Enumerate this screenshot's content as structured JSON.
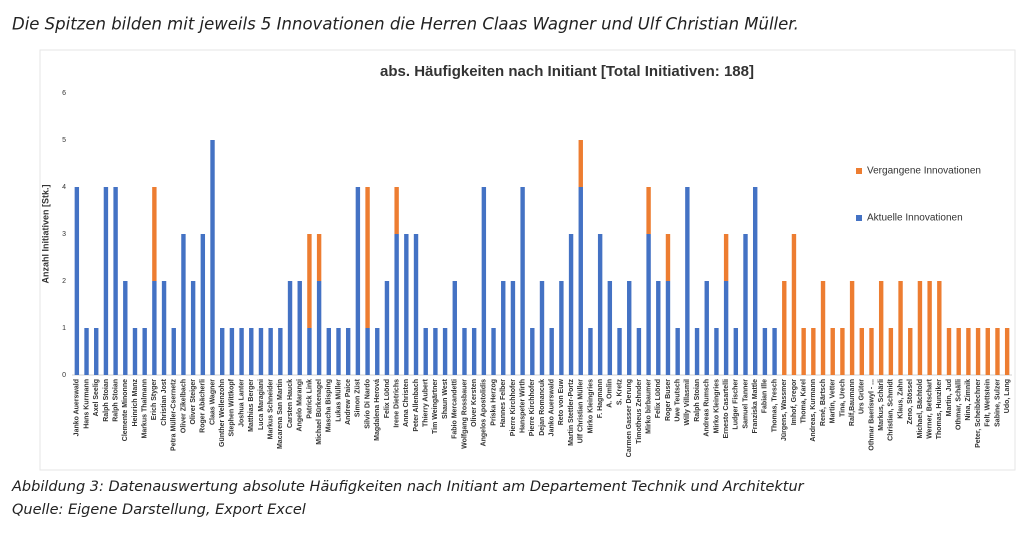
{
  "heading": "Die Spitzen bilden mit jeweils 5 Innovationen die Herren Claas Wagner und Ulf Christian Müller.",
  "caption": [
    "Abbildung 3: Datenauswertung absolute Häufigkeiten nach Initiant am Departement Technik und Architektur",
    "Quelle: Eigene Darstellung, Export Excel"
  ],
  "chart_data": {
    "type": "stacked_bar",
    "title": "abs. Häufigkeiten nach Initiant [Total Initiativen: 188]",
    "y_label": "Anzahl Initiativen [Stk.]",
    "categories": [
      "Janko Auerswald",
      "Hans Kurmann",
      "Axel Seelig",
      "Ralph Stoian",
      "Ralph Stoian",
      "Clemente Minonne",
      "Heinrich Manz",
      "Markus Thalmann",
      "Erich Styger",
      "Christian Jost",
      "Petra Müller-Csernetz",
      "Oliver Zikelbach",
      "Oliver Steiger",
      "Roger Abächerli",
      "Claas Wagner",
      "Günther Wellenzohn",
      "Stephen Wittkopf",
      "Joshua Lanter",
      "Matthias Berger",
      "Luca Maragiani",
      "Markus Schneider",
      "Macarena San Martin",
      "Carsten Hauck",
      "Angelo Marangi",
      "Patrick Link",
      "Michael Bürkenagel",
      "Mascha Bisping",
      "Lukas Müller",
      "Andrew Paice",
      "Simon Züst",
      "Silvio Di Nardo",
      "Magdalena Herová",
      "Felix Lüönd",
      "Irene Dietrichs",
      "Anna Christen",
      "Peter Allenbach",
      "Thierry Aubert",
      "Tim Weingärtner",
      "Shaun West",
      "Fabio Mercandetti",
      "Wolfgang Rossbauer",
      "Oliver Kersten",
      "Angelos Apostolidis",
      "Priska Herzog",
      "Hannes Felber",
      "Pierre Kirchhofer",
      "Hanspeter Wirth",
      "Pierre Kirchhofer",
      "Dejan Romancuk",
      "Janko Auerswald",
      "Reto von Euw",
      "Martin Stettler-Portz",
      "Ulf Christian Müller",
      "Mirko Kleingries",
      "F. Hagmann",
      "A. Omlin",
      "S. Kretz",
      "Carmen Gasser Derung",
      "Timotheus Zehnder",
      "Mirko birbaumer",
      "Felix Lüönd",
      "Roger Buser",
      "Uwe Teutsch",
      "Willy Villasmil",
      "Ralph Stoian",
      "Andreas Rumsch",
      "Mirko Kleingries",
      "Ernesto Casartelli",
      "Ludger Fischer",
      "Samuel Tanner",
      "Franziska Mattle",
      "Fabian Ille",
      "Thomas, Tresch",
      "Jürgens, Wassmer",
      "Imhof, Gregor",
      "Thoma, Karel",
      "Andreas, Kurmann",
      "René, Bärtsch",
      "Martin, Vetter",
      "Tina, Urech",
      "Ralf,Baumann",
      "Urs Grüter",
      "Othmar Baeriswyl - ...",
      "Markus, Schärli",
      "Christian, Schmidt",
      "Klaus, Zahn",
      "Zeno, Stössel",
      "Michael, Bächtold",
      "Werner, Betschart",
      "Thomas, Hunziker",
      "Martin, Jud",
      "Othmar, Schälli",
      "Nina, Zimnik",
      "Peter, Scheiblechner",
      "Felt, Wettstein",
      "Sabine, Sulzer",
      "Udo, Lang"
    ],
    "series": [
      {
        "name": "Aktuelle Innovationen",
        "color": "#4472c4",
        "values": [
          4,
          1,
          1,
          4,
          4,
          2,
          1,
          1,
          2,
          2,
          1,
          3,
          2,
          3,
          5,
          1,
          1,
          1,
          1,
          1,
          1,
          1,
          2,
          2,
          1,
          2,
          1,
          1,
          1,
          4,
          1,
          1,
          2,
          3,
          3,
          3,
          1,
          1,
          1,
          2,
          1,
          1,
          4,
          1,
          2,
          2,
          4,
          1,
          2,
          1,
          2,
          3,
          4,
          1,
          3,
          2,
          1,
          2,
          1,
          3,
          2,
          2,
          1,
          4,
          1,
          2,
          1,
          2,
          1,
          3,
          4,
          1,
          1,
          0,
          0,
          0,
          0,
          0,
          0,
          0,
          0,
          0,
          0,
          0,
          0,
          0,
          0,
          0,
          0,
          0,
          0,
          0,
          0,
          0,
          0,
          0,
          0
        ]
      },
      {
        "name": "Vergangene Innovationen",
        "color": "#ed7d31",
        "values": [
          0,
          0,
          0,
          0,
          0,
          0,
          0,
          0,
          2,
          0,
          0,
          0,
          0,
          0,
          0,
          0,
          0,
          0,
          0,
          0,
          0,
          0,
          0,
          0,
          2,
          1,
          0,
          0,
          0,
          0,
          3,
          0,
          0,
          1,
          0,
          0,
          0,
          0,
          0,
          0,
          0,
          0,
          0,
          0,
          0,
          0,
          0,
          0,
          0,
          0,
          0,
          0,
          1,
          0,
          0,
          0,
          0,
          0,
          0,
          1,
          0,
          1,
          0,
          0,
          0,
          0,
          0,
          1,
          0,
          0,
          0,
          0,
          0,
          2,
          3,
          1,
          1,
          2,
          1,
          1,
          2,
          1,
          1,
          2,
          1,
          2,
          1,
          2,
          2,
          2,
          1,
          1,
          1,
          1,
          1,
          1,
          1
        ]
      }
    ],
    "ylim": [
      0,
      6
    ],
    "yticks": [
      0,
      1,
      2,
      3,
      4,
      5,
      6
    ],
    "grid": false,
    "legend": "right"
  }
}
